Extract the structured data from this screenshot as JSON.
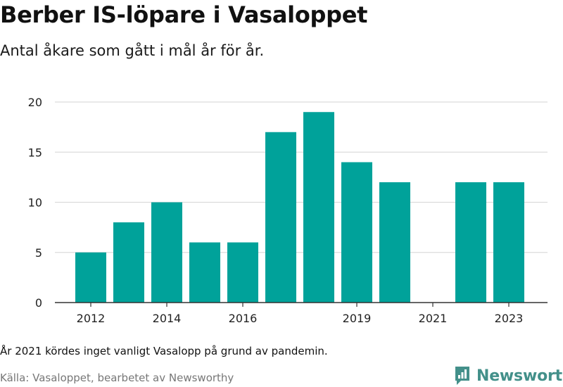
{
  "title": "Berber IS-löpare i Vasaloppet",
  "subtitle": "Antal åkare som gått i mål år för år.",
  "note": "År 2021 kördes inget vanligt Vasalopp på grund av pandemin.",
  "source": "Källa: Vasaloppet, bearbetet av Newsworthy",
  "brand": {
    "name": "Newsworthy",
    "color": "#43908a"
  },
  "chart_data": {
    "type": "bar",
    "categories": [
      "2012",
      "2013",
      "2014",
      "2015",
      "2016",
      "2017",
      "2018",
      "2019",
      "2020",
      "2021",
      "2022",
      "2023"
    ],
    "values": [
      5,
      8,
      10,
      6,
      6,
      17,
      19,
      14,
      12,
      0,
      12,
      12
    ],
    "x_tick_labels": [
      "2012",
      "2014",
      "2016",
      "2019",
      "2021",
      "2023"
    ],
    "y_ticks": [
      0,
      5,
      10,
      15,
      20
    ],
    "ylim": [
      0,
      20
    ],
    "bar_color": "#00a29a",
    "grid": true
  }
}
